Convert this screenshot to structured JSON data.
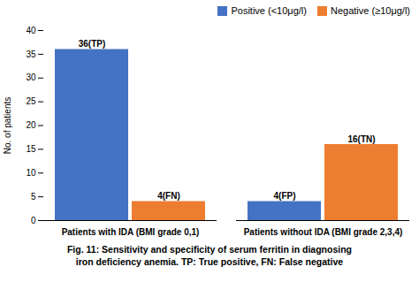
{
  "chart_data": {
    "type": "bar",
    "categories": [
      "Patients with IDA (BMI grade 0,1)",
      "Patients without IDA (BMI grade 2,3,4)"
    ],
    "series": [
      {
        "name": "Positive (<10μg/l)",
        "color": "#4472C4",
        "values": [
          36,
          4
        ],
        "value_labels": [
          "36(TP)",
          "4(FP)"
        ]
      },
      {
        "name": "Negative (≥10μg/l)",
        "color": "#ED7D31",
        "values": [
          4,
          16
        ],
        "value_labels": [
          "4(FN)",
          "16(TN)"
        ]
      }
    ],
    "y_label": "No. of patients",
    "ylim": [
      0,
      40
    ],
    "yticks": [
      0,
      5,
      10,
      15,
      20,
      25,
      30,
      35,
      40
    ],
    "data_labels": true,
    "legend": "upper right",
    "grid": false,
    "annotations": [
      "Fig. 11: Sensitivity and specificity of serum ferritin in diagnosing",
      "iron deficiency anemia. TP: True positive, FN: False negative"
    ]
  }
}
